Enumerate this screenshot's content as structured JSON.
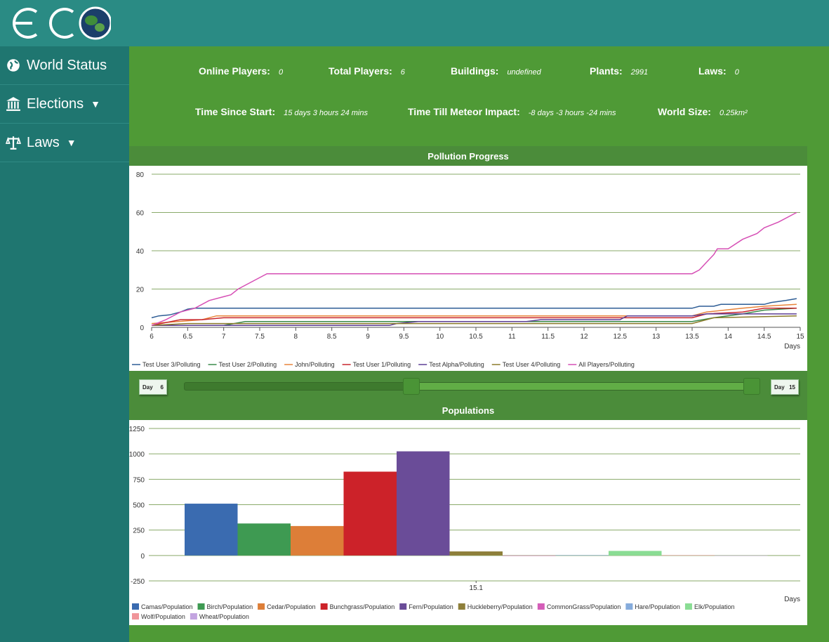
{
  "app": {
    "logo_text": "ECO"
  },
  "sidebar": {
    "items": [
      {
        "label": "World Status",
        "icon": "globe-icon"
      },
      {
        "label": "Elections",
        "icon": "building-icon"
      },
      {
        "label": "Laws",
        "icon": "scale-icon"
      }
    ]
  },
  "stats": {
    "online_players": {
      "label": "Online Players:",
      "value": "0"
    },
    "total_players": {
      "label": "Total Players:",
      "value": "6"
    },
    "buildings": {
      "label": "Buildings:",
      "value": "undefined"
    },
    "plants": {
      "label": "Plants:",
      "value": "2991"
    },
    "laws": {
      "label": "Laws:",
      "value": "0"
    },
    "time_since_start": {
      "label": "Time Since Start:",
      "value": "15 days 3 hours 24 mins"
    },
    "time_till_meteor": {
      "label": "Time Till Meteor Impact:",
      "value": "-8 days -3 hours -24 mins"
    },
    "world_size": {
      "label": "World Size:",
      "value": "0.25km²"
    }
  },
  "slider": {
    "min_label": "Day",
    "min_value": "6",
    "max_label": "Day",
    "max_value": "15",
    "range_start_fraction": 0.4,
    "range_end_fraction": 1.0
  },
  "chart_data": [
    {
      "type": "line",
      "title": "Pollution Progress",
      "xlabel": "Days",
      "ylabel": "",
      "xlim": [
        6,
        15
      ],
      "ylim": [
        0,
        80
      ],
      "x_ticks": [
        6,
        6.5,
        7,
        7.5,
        8,
        8.5,
        9,
        9.5,
        10,
        10.5,
        11,
        11.5,
        12,
        12.5,
        13,
        13.5,
        14,
        14.5,
        15
      ],
      "y_ticks": [
        0,
        20,
        40,
        60,
        80
      ],
      "legend_position": "bottom-left",
      "series": [
        {
          "name": "Test User 3/Polluting",
          "color": "#2e5d95",
          "points": [
            [
              6,
              5
            ],
            [
              6.1,
              6
            ],
            [
              6.25,
              6.5
            ],
            [
              6.4,
              8
            ],
            [
              6.5,
              9.5
            ],
            [
              6.6,
              10
            ],
            [
              13.5,
              10
            ],
            [
              13.6,
              11
            ],
            [
              13.8,
              11
            ],
            [
              13.9,
              12
            ],
            [
              14.5,
              12
            ],
            [
              14.6,
              13
            ],
            [
              14.8,
              14
            ],
            [
              14.95,
              15
            ]
          ]
        },
        {
          "name": "Test User 2/Polluting",
          "color": "#3a8a4a",
          "points": [
            [
              6,
              1
            ],
            [
              7,
              1
            ],
            [
              7.3,
              3
            ],
            [
              13.5,
              3
            ],
            [
              13.8,
              5
            ],
            [
              14.2,
              7
            ],
            [
              14.5,
              9
            ],
            [
              14.95,
              10
            ]
          ]
        },
        {
          "name": "John/Polluting",
          "color": "#e8843a",
          "points": [
            [
              6,
              2
            ],
            [
              6.7,
              4
            ],
            [
              6.9,
              6
            ],
            [
              13.5,
              6
            ],
            [
              13.7,
              8
            ],
            [
              14.2,
              10
            ],
            [
              14.5,
              11
            ],
            [
              14.95,
              12
            ]
          ]
        },
        {
          "name": "Test User 1/Polluting",
          "color": "#c8262e",
          "points": [
            [
              6,
              1
            ],
            [
              6.4,
              4
            ],
            [
              6.7,
              4
            ],
            [
              7,
              5
            ],
            [
              13.5,
              5
            ],
            [
              13.7,
              7
            ],
            [
              14.2,
              8
            ],
            [
              14.5,
              10
            ],
            [
              14.95,
              10
            ]
          ]
        },
        {
          "name": "Test Alpha/Polluting",
          "color": "#5d3f95",
          "points": [
            [
              6,
              1
            ],
            [
              9.3,
              1
            ],
            [
              9.4,
              2
            ],
            [
              9.7,
              3
            ],
            [
              11.2,
              3
            ],
            [
              11.4,
              4
            ],
            [
              12.5,
              4
            ],
            [
              12.6,
              6
            ],
            [
              13.5,
              6
            ],
            [
              13.7,
              7
            ],
            [
              14.95,
              7
            ]
          ]
        },
        {
          "name": "Test User 4/Polluting",
          "color": "#8a7a2a",
          "points": [
            [
              6,
              1
            ],
            [
              6.5,
              2
            ],
            [
              7,
              2
            ],
            [
              7.5,
              2
            ],
            [
              13.5,
              2
            ],
            [
              13.8,
              5
            ],
            [
              14.95,
              6
            ]
          ]
        },
        {
          "name": "All Players/Polluting",
          "color": "#d64fb5",
          "points": [
            [
              6,
              1
            ],
            [
              6.2,
              4
            ],
            [
              6.4,
              8
            ],
            [
              6.6,
              10
            ],
            [
              6.8,
              14
            ],
            [
              7,
              16
            ],
            [
              7.1,
              17
            ],
            [
              7.2,
              20
            ],
            [
              7.4,
              24
            ],
            [
              7.6,
              28
            ],
            [
              13.5,
              28
            ],
            [
              13.6,
              30
            ],
            [
              13.7,
              34
            ],
            [
              13.8,
              38
            ],
            [
              13.85,
              41
            ],
            [
              14,
              41
            ],
            [
              14.2,
              46
            ],
            [
              14.4,
              49
            ],
            [
              14.5,
              52
            ],
            [
              14.7,
              55
            ],
            [
              14.95,
              60
            ]
          ]
        }
      ]
    },
    {
      "type": "bar",
      "title": "Populations",
      "xlabel": "Days",
      "ylabel": "",
      "categories": [
        "15.1"
      ],
      "ylim": [
        -250,
        1250
      ],
      "y_ticks": [
        -250,
        0,
        250,
        500,
        750,
        1000,
        1250
      ],
      "legend_position": "bottom-left",
      "series": [
        {
          "name": "Camas/Population",
          "color": "#3a6bb0",
          "values": [
            510
          ]
        },
        {
          "name": "Birch/Population",
          "color": "#3e9a52",
          "values": [
            315
          ]
        },
        {
          "name": "Cedar/Population",
          "color": "#dd7e38",
          "values": [
            290
          ]
        },
        {
          "name": "Bunchgrass/Population",
          "color": "#cc2229",
          "values": [
            825
          ]
        },
        {
          "name": "Fern/Population",
          "color": "#6a4c98",
          "values": [
            1025
          ]
        },
        {
          "name": "Huckleberry/Population",
          "color": "#8e7f3a",
          "values": [
            40
          ]
        },
        {
          "name": "CommonGrass/Population",
          "color": "#d45db8",
          "values": [
            0
          ]
        },
        {
          "name": "Hare/Population",
          "color": "#86acdc",
          "values": [
            4
          ]
        },
        {
          "name": "Elk/Population",
          "color": "#8add94",
          "values": [
            45
          ]
        },
        {
          "name": "Wolf/Population",
          "color": "#f0959a",
          "values": [
            3
          ]
        },
        {
          "name": "Wheat/Population",
          "color": "#c3a4e0",
          "values": [
            0
          ]
        }
      ]
    }
  ]
}
